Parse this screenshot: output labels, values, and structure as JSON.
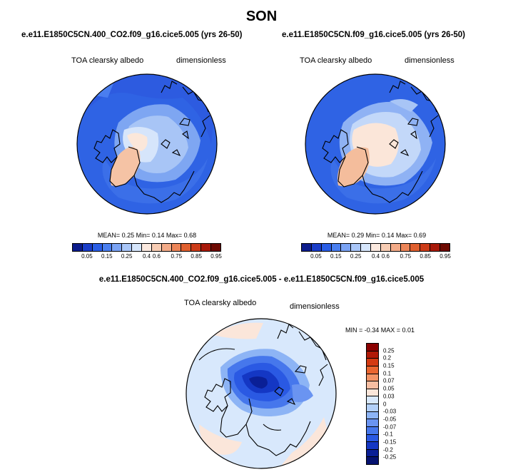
{
  "page_title": "SON",
  "panels": [
    {
      "case_title": "e.e11.E1850C5CN.400_CO2.f09_g16.cice5.005 (yrs 26-50)",
      "variable": "TOA clearsky albedo",
      "units": "dimensionless",
      "stats_line": "MEAN=  0.25  Min=  0.14  Max=  0.68",
      "mean": 0.25,
      "min": 0.14,
      "max": 0.68
    },
    {
      "case_title": "e.e11.E1850C5CN.f09_g16.cice5.005 (yrs 26-50)",
      "variable": "TOA clearsky albedo",
      "units": "dimensionless",
      "stats_line": "MEAN=  0.29  Min=  0.14  Max=  0.69",
      "mean": 0.29,
      "min": 0.14,
      "max": 0.69
    }
  ],
  "diff_panel": {
    "title": "e.e11.E1850C5CN.400_CO2.f09_g16.cice5.005 - e.e11.E1850C5CN.f09_g16.cice5.005",
    "variable": "TOA clearsky albedo",
    "units": "dimensionless",
    "stats_line": "MIN =  -0.34 MAX =   0.01",
    "min": -0.34,
    "max": 0.01
  },
  "colorbar": {
    "colors": [
      "#0c1c8c",
      "#1a3dc8",
      "#2a5ee6",
      "#4a7ff0",
      "#7aa3f4",
      "#a9c6f8",
      "#d6e6fc",
      "#fbe9df",
      "#f8cdb4",
      "#f3ab88",
      "#ec8558",
      "#e0602f",
      "#cc3b18",
      "#a8190a",
      "#6e0a02"
    ],
    "tick_labels": [
      "0.05",
      "0.15",
      "0.25",
      "0.4",
      "0.6",
      "0.75",
      "0.85",
      "0.95"
    ],
    "tick_index": [
      1,
      3,
      5,
      7,
      8,
      10,
      12,
      14
    ]
  },
  "diff_colorbar": {
    "colors": [
      "#8b0000",
      "#b11a08",
      "#d43a12",
      "#ea6630",
      "#f39466",
      "#f7bea2",
      "#fbe6da",
      "#d8e8fc",
      "#b3d0f9",
      "#8db4f5",
      "#6a94f1",
      "#4677ec",
      "#2a59e3",
      "#1437c4",
      "#0a1f96",
      "#061270"
    ],
    "tick_labels": [
      "0.25",
      "0.2",
      "0.15",
      "0.1",
      "0.07",
      "0.05",
      "0.03",
      "0",
      "-0.03",
      "-0.05",
      "-0.07",
      "-0.1",
      "-0.15",
      "-0.2",
      "-0.25"
    ]
  }
}
